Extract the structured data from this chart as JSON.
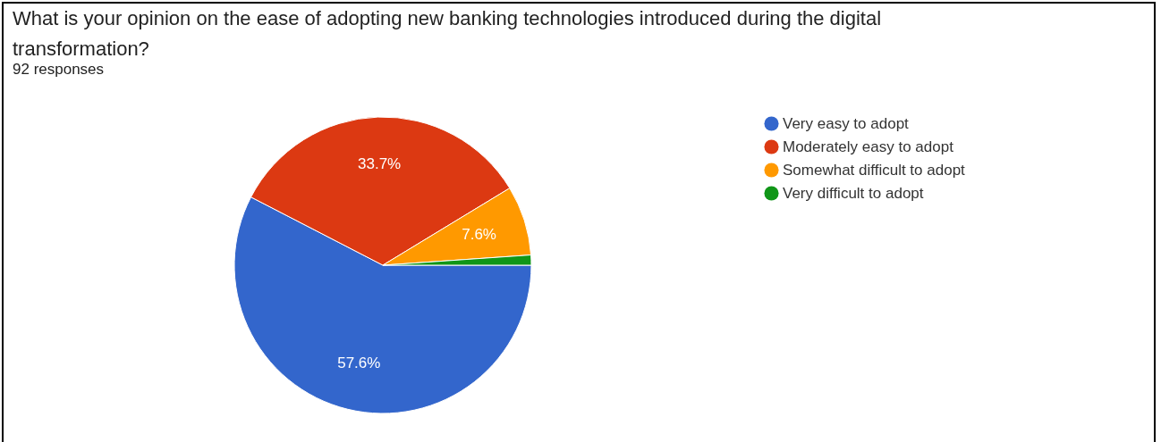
{
  "chart_data": {
    "type": "pie",
    "title": "What is your opinion on the ease of adopting new banking technologies introduced during the digital transformation?",
    "subtitle": "92 responses",
    "categories": [
      "Very easy to adopt",
      "Moderately easy to adopt",
      "Somewhat difficult to adopt",
      "Very difficult to adopt"
    ],
    "values": [
      57.6,
      33.7,
      7.6,
      1.1
    ],
    "value_labels": [
      "57.6%",
      "33.7%",
      "7.6%",
      null
    ],
    "colors": [
      "#3366cc",
      "#dc3912",
      "#ff9900",
      "#109618"
    ],
    "legend": "right"
  }
}
